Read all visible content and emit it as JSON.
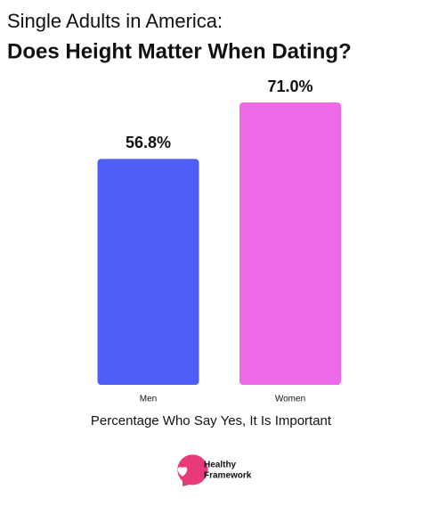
{
  "chart_data": {
    "type": "bar",
    "title": "Single Adults in America:",
    "subtitle": "Does Height Matter When Dating?",
    "categories": [
      "Men",
      "Women"
    ],
    "series": [
      {
        "name": "Percentage Who Say Yes, It Is Important",
        "colors": [
          "#4f5ff6",
          "#ee68e8"
        ],
        "values": [
          56.8,
          71.0
        ],
        "value_labels": [
          "56.8%",
          "71.0%"
        ]
      }
    ],
    "xlabel": "Percentage Who Say Yes, It Is Important"
  },
  "brand": [
    "Healthy",
    "Framework"
  ]
}
